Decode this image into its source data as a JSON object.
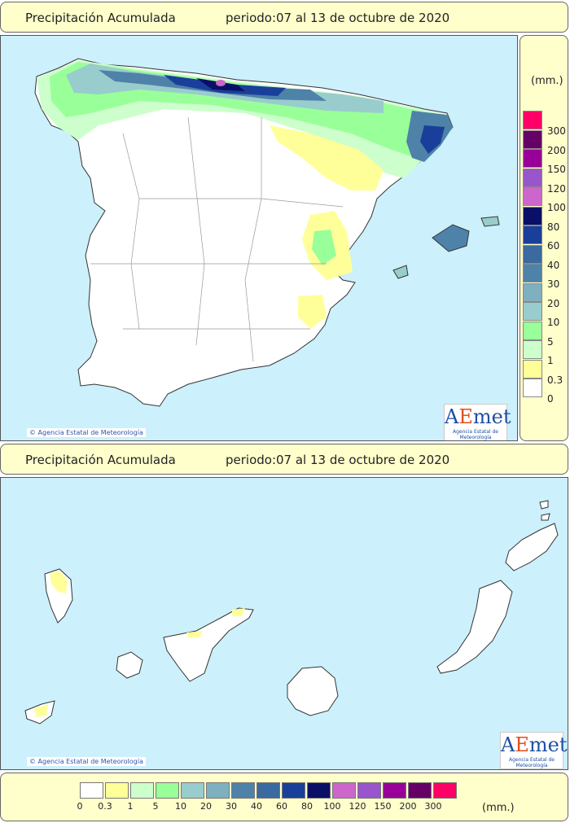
{
  "panels": {
    "peninsula": {
      "title": "Precipitación Acumulada",
      "period": "periodo:07 al 13 de octubre de 2020"
    },
    "canarias": {
      "title": "Precipitación Acumulada",
      "period": "periodo:07 al 13 de octubre de 2020"
    }
  },
  "credit": "Agencia Estatal de Meteorología",
  "logo": {
    "brand_a": "A",
    "brand_e": "E",
    "brand_rest": "met",
    "subtitle": "Agencia Estatal de Meteorología"
  },
  "legend": {
    "unit": "(mm.)",
    "classes": [
      {
        "label": "0",
        "color": "#ffffff"
      },
      {
        "label": "0.3",
        "color": "#ffff99"
      },
      {
        "label": "1",
        "color": "#ccffcc"
      },
      {
        "label": "5",
        "color": "#99ff99"
      },
      {
        "label": "10",
        "color": "#99cccc"
      },
      {
        "label": "20",
        "color": "#7fb0c0"
      },
      {
        "label": "30",
        "color": "#4f82a8"
      },
      {
        "label": "40",
        "color": "#3a6aa0"
      },
      {
        "label": "60",
        "color": "#1a3f9a"
      },
      {
        "label": "80",
        "color": "#0a1066"
      },
      {
        "label": "100",
        "color": "#cc66cc"
      },
      {
        "label": "120",
        "color": "#9955cc"
      },
      {
        "label": "150",
        "color": "#990099"
      },
      {
        "label": "200",
        "color": "#660066"
      },
      {
        "label": "300",
        "color": "#ff0066"
      }
    ]
  }
}
